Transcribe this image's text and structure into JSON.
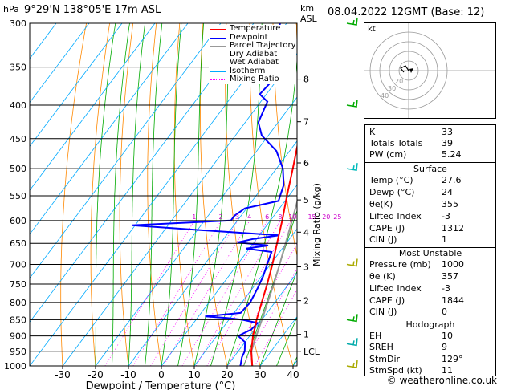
{
  "header": {
    "pressure_unit": "hPa",
    "location": "9°29'N  138°05'E  17m  ASL",
    "km_label": "km",
    "asl_label": "ASL",
    "datetime": "08.04.2022  12GMT  (Base: 12)"
  },
  "legend": [
    {
      "label": "Temperature",
      "color": "#ff0000"
    },
    {
      "label": "Dewpoint",
      "color": "#0000ff"
    },
    {
      "label": "Parcel Trajectory",
      "color": "#999999"
    },
    {
      "label": "Dry Adiabat",
      "color": "#ff8800"
    },
    {
      "label": "Wet Adiabat",
      "color": "#00aa00"
    },
    {
      "label": "Isotherm",
      "color": "#00aaff"
    },
    {
      "label": "Mixing Ratio",
      "color": "#ff00ff"
    }
  ],
  "chart_data": {
    "type": "line",
    "title": "",
    "xlabel": "Dewpoint / Temperature (°C)",
    "ylabel": "hPa",
    "right_ylabel": "Mixing Ratio (g/kg)",
    "pressure_levels": [
      300,
      350,
      400,
      450,
      500,
      550,
      600,
      650,
      700,
      750,
      800,
      850,
      900,
      950,
      1000
    ],
    "x_ticks": [
      -30,
      -20,
      -10,
      0,
      10,
      20,
      30,
      40
    ],
    "km_ticks": [
      {
        "km": "8",
        "p": 365
      },
      {
        "km": "7",
        "p": 424
      },
      {
        "km": "6",
        "p": 490
      },
      {
        "km": "5",
        "p": 558
      },
      {
        "km": "4",
        "p": 625
      },
      {
        "km": "3",
        "p": 706
      },
      {
        "km": "2",
        "p": 795
      },
      {
        "km": "1",
        "p": 895
      },
      {
        "km": "LCL",
        "p": 950
      }
    ],
    "mixing_ratio_labels": [
      "1",
      "2",
      "3",
      "4",
      "6",
      "8",
      "10",
      "15",
      "20",
      "25"
    ],
    "series": [
      {
        "name": "Temperature",
        "color": "#ff0000",
        "points": [
          [
            1000,
            27.6
          ],
          [
            950,
            24.0
          ],
          [
            900,
            21.0
          ],
          [
            850,
            18.4
          ],
          [
            800,
            16.0
          ],
          [
            750,
            13.5
          ],
          [
            700,
            10.6
          ],
          [
            650,
            7.2
          ],
          [
            600,
            3.6
          ],
          [
            550,
            -0.6
          ],
          [
            500,
            -5.0
          ],
          [
            450,
            -10.0
          ],
          [
            400,
            -16.0
          ],
          [
            350,
            -24.0
          ],
          [
            330,
            -27.5
          ]
        ]
      },
      {
        "name": "Dewpoint",
        "color": "#0000ff",
        "points": [
          [
            1000,
            24.0
          ],
          [
            970,
            22.5
          ],
          [
            950,
            22.0
          ],
          [
            920,
            20.0
          ],
          [
            900,
            16.5
          ],
          [
            880,
            19.0
          ],
          [
            860,
            19.5
          ],
          [
            850,
            14.0
          ],
          [
            845,
            9.0
          ],
          [
            840,
            2.0
          ],
          [
            830,
            12.0
          ],
          [
            800,
            12.5
          ],
          [
            760,
            11.5
          ],
          [
            730,
            10.5
          ],
          [
            700,
            9.0
          ],
          [
            670,
            7.5
          ],
          [
            662,
            -1.0
          ],
          [
            655,
            5.0
          ],
          [
            648,
            -5.0
          ],
          [
            640,
            -1.0
          ],
          [
            632,
            6.0
          ],
          [
            620,
            -20.0
          ],
          [
            610,
            -41.0
          ],
          [
            600,
            -12.0
          ],
          [
            590,
            -12.0
          ],
          [
            575,
            -10.5
          ],
          [
            560,
            -2.0
          ],
          [
            545,
            -3.0
          ],
          [
            530,
            -4.0
          ],
          [
            500,
            -8.0
          ],
          [
            470,
            -14.0
          ],
          [
            445,
            -22.0
          ],
          [
            425,
            -26.0
          ],
          [
            410,
            -27.0
          ],
          [
            395,
            -28.0
          ],
          [
            385,
            -32.0
          ],
          [
            360,
            -31.0
          ],
          [
            330,
            -37.0
          ],
          [
            300,
            -42.0
          ]
        ]
      },
      {
        "name": "Parcel Trajectory",
        "color": "#999999",
        "points": [
          [
            1000,
            27.6
          ],
          [
            950,
            24.0
          ],
          [
            900,
            22.0
          ],
          [
            850,
            20.0
          ],
          [
            800,
            17.8
          ],
          [
            750,
            15.5
          ],
          [
            700,
            12.8
          ],
          [
            650,
            9.8
          ],
          [
            600,
            6.6
          ],
          [
            550,
            3.0
          ],
          [
            500,
            -1.0
          ],
          [
            450,
            -6.2
          ],
          [
            400,
            -12.5
          ],
          [
            350,
            -20.2
          ],
          [
            300,
            -29.5
          ]
        ]
      }
    ],
    "wind_barbs": [
      {
        "p": 300,
        "color": "#00aa00"
      },
      {
        "p": 400,
        "color": "#00aa00"
      },
      {
        "p": 500,
        "color": "#00bbbb"
      },
      {
        "p": 700,
        "color": "#aaaa00"
      },
      {
        "p": 850,
        "color": "#00aa00"
      },
      {
        "p": 925,
        "color": "#00aaaa"
      },
      {
        "p": 1000,
        "color": "#aaaa00"
      }
    ]
  },
  "hodograph": {
    "title": "kt",
    "ring_labels": [
      "20",
      "30",
      "40"
    ]
  },
  "indices": {
    "top": [
      {
        "k": "K",
        "v": "33"
      },
      {
        "k": "Totals Totals",
        "v": "39"
      },
      {
        "k": "PW (cm)",
        "v": "5.24"
      }
    ],
    "surface_title": "Surface",
    "surface": [
      {
        "k": "Temp (°C)",
        "v": "27.6"
      },
      {
        "k": "Dewp (°C)",
        "v": "24"
      },
      {
        "k": "θe(K)",
        "v": "355"
      },
      {
        "k": "Lifted Index",
        "v": "-3"
      },
      {
        "k": "CAPE (J)",
        "v": "1312"
      },
      {
        "k": "CIN (J)",
        "v": "1"
      }
    ],
    "mu_title": "Most Unstable",
    "mu": [
      {
        "k": "Pressure (mb)",
        "v": "1000"
      },
      {
        "k": "θe (K)",
        "v": "357"
      },
      {
        "k": "Lifted Index",
        "v": "-3"
      },
      {
        "k": "CAPE (J)",
        "v": "1844"
      },
      {
        "k": "CIN (J)",
        "v": "0"
      }
    ],
    "hodo_title": "Hodograph",
    "hodo": [
      {
        "k": "EH",
        "v": "10"
      },
      {
        "k": "SREH",
        "v": "9"
      },
      {
        "k": "StmDir",
        "v": "129°"
      },
      {
        "k": "StmSpd (kt)",
        "v": "11"
      }
    ]
  },
  "footer": "© weatheronline.co.uk"
}
